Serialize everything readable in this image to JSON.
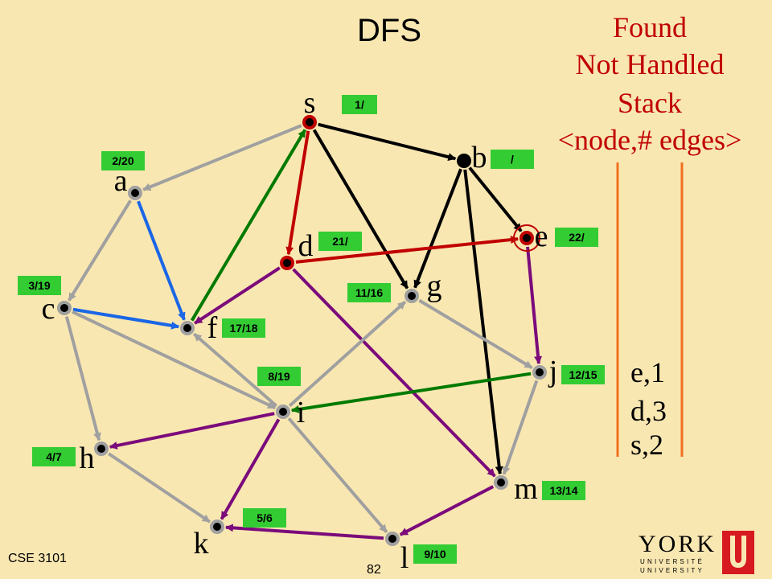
{
  "title": "DFS",
  "legend": {
    "line1": "Found",
    "line2": "Not Handled",
    "line3": "Stack",
    "line4": "<node,# edges>"
  },
  "stack": [
    "e,1",
    "d,3",
    "s,2"
  ],
  "footer": {
    "course": "CSE 3101",
    "page": "82"
  },
  "logo": {
    "name": "YORK",
    "sub1": "UNIVERSITÉ",
    "sub2": "UNIVERSITY"
  },
  "colors": {
    "gray_edge": "#a0a0a0",
    "black_edge": "#000000",
    "red_edge": "#c00000",
    "green_edge": "#007a00",
    "purple_edge": "#7b0a7b",
    "blue_edge": "#1a66e6",
    "label_box": "#33cc33",
    "label_text": "#000000",
    "stack_line": "#f07020"
  },
  "nodes": [
    {
      "id": "s",
      "label": "s",
      "time": "1/",
      "state": "stack"
    },
    {
      "id": "a",
      "label": "a",
      "time": "2/20",
      "state": "done"
    },
    {
      "id": "b",
      "label": "b",
      "time": "/",
      "state": "found"
    },
    {
      "id": "c",
      "label": "c",
      "time": "3/19",
      "state": "done"
    },
    {
      "id": "d",
      "label": "d",
      "time": "21/",
      "state": "stack"
    },
    {
      "id": "e",
      "label": "e",
      "time": "22/",
      "state": "current"
    },
    {
      "id": "f",
      "label": "f",
      "time": "17/18",
      "state": "done"
    },
    {
      "id": "g",
      "label": "g",
      "time": "11/16",
      "state": "done"
    },
    {
      "id": "h",
      "label": "h",
      "time": "4/7",
      "state": "done"
    },
    {
      "id": "i",
      "label": "i",
      "time": "8/19",
      "state": "done"
    },
    {
      "id": "j",
      "label": "j",
      "time": "12/15",
      "state": "done"
    },
    {
      "id": "k",
      "label": "k",
      "time": "5/6",
      "state": "done"
    },
    {
      "id": "l",
      "label": "l",
      "time": "9/10",
      "state": "done"
    },
    {
      "id": "m",
      "label": "m",
      "time": "13/14",
      "state": "done"
    }
  ],
  "edges": [
    {
      "from": "s",
      "to": "a",
      "kind": "gray"
    },
    {
      "from": "s",
      "to": "b",
      "kind": "black"
    },
    {
      "from": "s",
      "to": "g",
      "kind": "black"
    },
    {
      "from": "s",
      "to": "d",
      "kind": "red"
    },
    {
      "from": "a",
      "to": "c",
      "kind": "gray"
    },
    {
      "from": "a",
      "to": "f",
      "kind": "blue"
    },
    {
      "from": "b",
      "to": "e",
      "kind": "black"
    },
    {
      "from": "b",
      "to": "g",
      "kind": "black"
    },
    {
      "from": "b",
      "to": "m",
      "kind": "black"
    },
    {
      "from": "c",
      "to": "f",
      "kind": "blue"
    },
    {
      "from": "c",
      "to": "i",
      "kind": "gray"
    },
    {
      "from": "c",
      "to": "h",
      "kind": "gray"
    },
    {
      "from": "d",
      "to": "e",
      "kind": "red"
    },
    {
      "from": "d",
      "to": "f",
      "kind": "purple"
    },
    {
      "from": "d",
      "to": "m",
      "kind": "purple"
    },
    {
      "from": "e",
      "to": "j",
      "kind": "purple"
    },
    {
      "from": "f",
      "to": "s",
      "kind": "green"
    },
    {
      "from": "g",
      "to": "j",
      "kind": "gray"
    },
    {
      "from": "i",
      "to": "f",
      "kind": "gray"
    },
    {
      "from": "i",
      "to": "g",
      "kind": "gray"
    },
    {
      "from": "i",
      "to": "h",
      "kind": "purple"
    },
    {
      "from": "i",
      "to": "k",
      "kind": "purple"
    },
    {
      "from": "i",
      "to": "l",
      "kind": "gray"
    },
    {
      "from": "j",
      "to": "i",
      "kind": "green"
    },
    {
      "from": "j",
      "to": "m",
      "kind": "gray"
    },
    {
      "from": "h",
      "to": "k",
      "kind": "gray"
    },
    {
      "from": "m",
      "to": "l",
      "kind": "purple"
    },
    {
      "from": "l",
      "to": "k",
      "kind": "purple"
    }
  ]
}
